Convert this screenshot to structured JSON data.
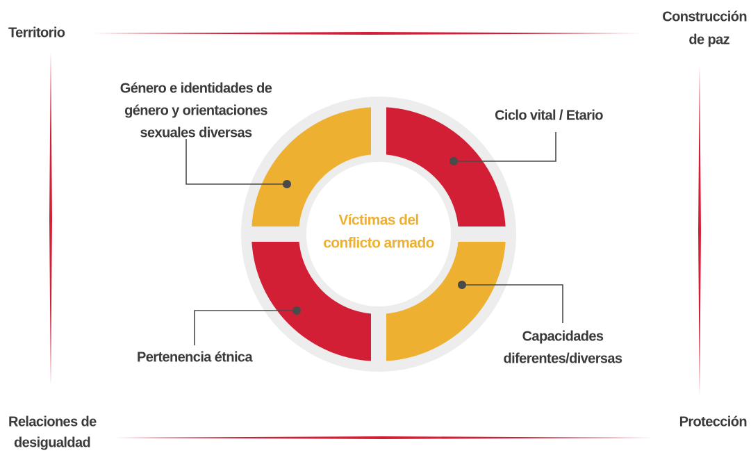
{
  "corners": {
    "top_left": [
      "Territorio"
    ],
    "top_right": [
      "Construcción",
      "de paz"
    ],
    "bottom_left": [
      "Relaciones de",
      "desigualdad"
    ],
    "bottom_right": [
      "Protección"
    ]
  },
  "center": [
    "Víctimas del",
    "conflicto armado"
  ],
  "segments": [
    {
      "label": [
        "Género e identidades de",
        "género y orientaciones",
        "sexuales diversas"
      ]
    },
    {
      "label": [
        "Ciclo vital / Etario"
      ]
    },
    {
      "label": [
        "Pertenencia étnica"
      ]
    },
    {
      "label": [
        "Capacidades",
        "diferentes/diversas"
      ]
    }
  ]
}
